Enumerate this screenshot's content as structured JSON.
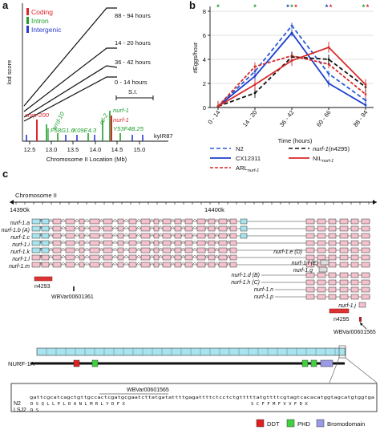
{
  "panels": {
    "a": "a",
    "b": "b",
    "c": "c"
  },
  "panel_a": {
    "legend": [
      {
        "label": "Coding",
        "color": "#e0242a"
      },
      {
        "label": "Intron",
        "color": "#1f9e2c"
      },
      {
        "label": "Intergenic",
        "color": "#2a3bcc"
      }
    ],
    "ylabel": "lod score",
    "xlabel": "Chromosome II Location (Mb)",
    "xticks": [
      "12.5",
      "13.0",
      "13.5",
      "14.0",
      "14.5",
      "15.0"
    ],
    "series_labels": [
      "88 - 94 hours",
      "14 - 20 hours",
      "36 - 42 hours",
      "0 - 14 hours"
    ],
    "si_label": "S.I.",
    "markers": [
      {
        "label": "snrp-200",
        "color": "#e0242a"
      },
      {
        "label": "arrd-10",
        "color": "#1f9e2c"
      },
      {
        "label": "F58G1.6",
        "color": "#1f9e2c"
      },
      {
        "label": "K09E4.3",
        "color": "#1f9e2c"
      },
      {
        "label": "ctl-2",
        "color": "#1f9e2c"
      },
      {
        "label": "nurf-1",
        "color": "#1f9e2c"
      },
      {
        "label": "nurf-1",
        "color": "#e0242a"
      },
      {
        "label": "Y53F4B.25",
        "color": "#1f9e2c"
      },
      {
        "label": "kyIR87",
        "color": "#111111"
      }
    ]
  },
  "chart_data": {
    "type": "line",
    "categories": [
      "0 - 14",
      "14 - 20",
      "36 - 42",
      "60 - 66",
      "88 - 94"
    ],
    "xlabel": "Time (hours)",
    "ylabel": "#Eggs/hour",
    "ylim": [
      0,
      8
    ],
    "yticks": [
      "0",
      "2",
      "4",
      "6",
      "8"
    ],
    "grid": true,
    "series": [
      {
        "name": "N2",
        "color": "#2a5bd7",
        "dash": "5,3",
        "values": [
          0.1,
          3.0,
          6.8,
          2.8,
          0.6
        ]
      },
      {
        "name": "CX12311",
        "color": "#1c3fcf",
        "dash": "",
        "values": [
          0.1,
          2.6,
          6.2,
          2.0,
          0.2
        ]
      },
      {
        "name": "ARL",
        "color": "#d62a2a",
        "dash": "4,2",
        "values": [
          0.1,
          3.4,
          4.3,
          3.6,
          1.1
        ]
      },
      {
        "name": "nurf-1(n4295)",
        "color": "#111111",
        "dash": "5,3",
        "values": [
          0.1,
          1.2,
          4.2,
          4.0,
          1.7
        ]
      },
      {
        "name": "NIL",
        "color": "#d62a2a",
        "dash": "",
        "values": [
          0.1,
          1.9,
          3.9,
          5.0,
          1.9
        ]
      }
    ],
    "stars": [
      {
        "cat": 0,
        "symbols": [
          {
            "t": "*",
            "c": "#1f9e2c"
          }
        ]
      },
      {
        "cat": 1,
        "symbols": [
          {
            "t": "*",
            "c": "#1f9e2c"
          }
        ]
      },
      {
        "cat": 2,
        "symbols": [
          {
            "t": "*",
            "c": "#1c3fcf"
          },
          {
            "t": "*",
            "c": "#1f9e2c"
          },
          {
            "t": "*",
            "c": "#d62a2a"
          }
        ]
      },
      {
        "cat": 3,
        "symbols": [
          {
            "t": "*",
            "c": "#1c3fcf"
          },
          {
            "t": "*",
            "c": "#d62a2a"
          }
        ]
      },
      {
        "cat": 4,
        "symbols": [
          {
            "t": "*",
            "c": "#1f9e2c"
          },
          {
            "t": "*",
            "c": "#d62a2a"
          }
        ]
      }
    ]
  },
  "legend_b": {
    "n2": "N2",
    "n4295_prefix": "nurf-1",
    "n4295_suffix": "(n4295)",
    "cx": "CX12311",
    "nil": "NIL",
    "nil_sub": "nurf-1",
    "arl": "ARL",
    "arl_sub": "nurf-1"
  },
  "panel_c": {
    "chromosome": "Chromosome II",
    "coord_left": "14390k",
    "coord_right": "14400k",
    "isoforms_left": [
      "nurf-1.a",
      "nurf-1.b (A)",
      "nurf-1.c",
      "nurf-1.i",
      "nurf-1.k",
      "nurf-1.l",
      "nurf-1.m"
    ],
    "isoforms_right": [
      "nurf-1.e (D)",
      "nurf-1.f (E)",
      "nurf-1.g",
      "nurf-1.d (B)",
      "nurf-1.h (C)",
      "nurf-1.n",
      "nurf-1.p",
      "nurf-1.j"
    ],
    "allele_left": "n4293",
    "variant_left": "WBVar00601361",
    "allele_right": "n4295",
    "variant_right": "WBVar00601565",
    "protein": "NURF-1A",
    "seq_variant": "WBVar00601565",
    "seq_dna": "gattcgcatcagctgttgccactcgatgcgaatcttatgatattttgagattttctcctctgtttttatgttttcgtagtcacacatggtagcatgtggtga",
    "row_n2_label": "N2",
    "row_n2": "D  S  Q  L  L  P  L  D  A  N  L  M  R  L  Y  D  F  X",
    "row_lsj2_label": "LSJ2",
    "row_lsj2": "D  S",
    "row_right": "S  C  F  F  M  F  V  V  F  D  X",
    "domain_legend": [
      {
        "label": "DDT",
        "color": "#e01f1f"
      },
      {
        "label": "PHD",
        "color": "#3fd13f"
      },
      {
        "label": "Bromodomain",
        "color": "#9a9ae6"
      }
    ]
  }
}
